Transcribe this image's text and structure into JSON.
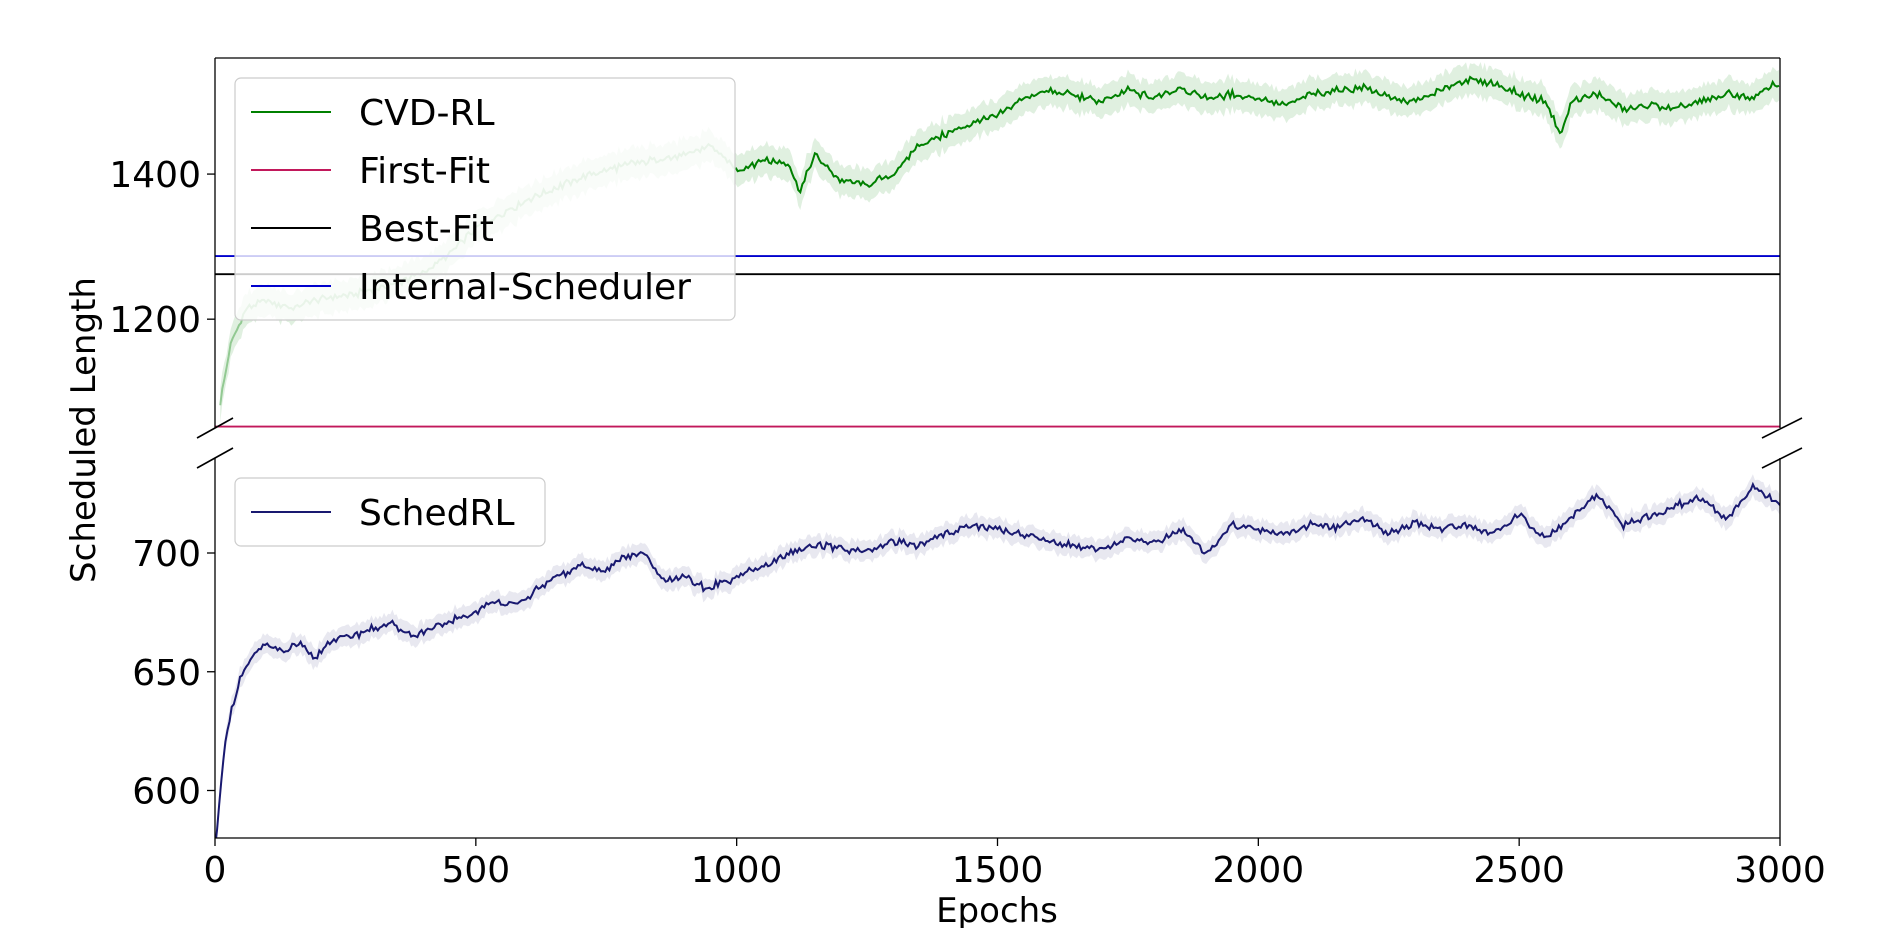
{
  "chart_data": {
    "type": "line",
    "xlabel": "Epochs",
    "ylabel": "Scheduled Length",
    "xlim": [
      0,
      3000
    ],
    "x_ticks": [
      "0",
      "500",
      "1000",
      "1500",
      "2000",
      "2500",
      "3000"
    ],
    "x_tick_values": [
      0,
      500,
      1000,
      1500,
      2000,
      2500,
      3000
    ],
    "broken_y_axis": true,
    "panels": [
      {
        "position": "top",
        "ylim": [
          1050,
          1560
        ],
        "y_ticks": [
          "1200",
          "1400"
        ],
        "y_tick_values": [
          1200,
          1400
        ],
        "legend_placement": "upper-left",
        "series": [
          {
            "name": "CVD-RL",
            "color": "#008000",
            "band_opacity": 0.12,
            "band_half_width": 25,
            "x": [
              10,
              30,
              60,
              100,
              150,
              200,
              250,
              300,
              350,
              400,
              450,
              500,
              550,
              600,
              650,
              700,
              750,
              800,
              850,
              900,
              950,
              1000,
              1050,
              1100,
              1120,
              1150,
              1200,
              1250,
              1300,
              1350,
              1400,
              1450,
              1500,
              1550,
              1600,
              1650,
              1700,
              1750,
              1800,
              1850,
              1900,
              1950,
              2000,
              2050,
              2100,
              2150,
              2200,
              2250,
              2300,
              2350,
              2400,
              2450,
              2500,
              2550,
              2580,
              2600,
              2650,
              2700,
              2750,
              2800,
              2850,
              2900,
              2950,
              2990,
              3000
            ],
            "y": [
              1085,
              1165,
              1215,
              1225,
              1215,
              1228,
              1232,
              1240,
              1250,
              1265,
              1290,
              1325,
              1345,
              1365,
              1380,
              1395,
              1405,
              1415,
              1420,
              1425,
              1440,
              1405,
              1420,
              1415,
              1375,
              1425,
              1390,
              1385,
              1400,
              1440,
              1455,
              1470,
              1480,
              1505,
              1515,
              1508,
              1500,
              1515,
              1505,
              1520,
              1505,
              1510,
              1505,
              1495,
              1510,
              1515,
              1520,
              1505,
              1500,
              1515,
              1530,
              1525,
              1510,
              1500,
              1455,
              1500,
              1510,
              1490,
              1495,
              1490,
              1500,
              1510,
              1505,
              1525,
              1520
            ],
            "faded_until": 1000
          },
          {
            "name": "First-Fit",
            "color": "#c2185b",
            "constant": 1052
          },
          {
            "name": "Best-Fit",
            "color": "#000000",
            "constant": 1262
          },
          {
            "name": "Internal-Scheduler",
            "color": "#0000cd",
            "constant": 1287
          }
        ]
      },
      {
        "position": "bottom",
        "ylim": [
          580,
          740
        ],
        "y_ticks": [
          "600",
          "650",
          "700"
        ],
        "y_tick_values": [
          600,
          650,
          700
        ],
        "legend_placement": "upper-left",
        "series": [
          {
            "name": "SchedRL",
            "color": "#191970",
            "band_opacity": 0.1,
            "band_half_width": 5,
            "x": [
              0,
              10,
              20,
              30,
              40,
              50,
              70,
              90,
              110,
              130,
              160,
              190,
              220,
              260,
              300,
              340,
              380,
              420,
              460,
              500,
              540,
              580,
              620,
              660,
              700,
              740,
              780,
              820,
              860,
              900,
              940,
              980,
              1020,
              1060,
              1100,
              1150,
              1200,
              1250,
              1300,
              1350,
              1400,
              1450,
              1500,
              1550,
              1600,
              1650,
              1700,
              1750,
              1800,
              1850,
              1900,
              1950,
              2000,
              2050,
              2100,
              2150,
              2200,
              2250,
              2300,
              2350,
              2400,
              2450,
              2500,
              2550,
              2600,
              2650,
              2700,
              2750,
              2800,
              2850,
              2900,
              2950,
              3000
            ],
            "y": [
              575,
              600,
              620,
              632,
              640,
              648,
              655,
              662,
              660,
              658,
              662,
              655,
              663,
              665,
              668,
              670,
              665,
              668,
              672,
              675,
              680,
              678,
              685,
              690,
              695,
              692,
              698,
              700,
              688,
              690,
              685,
              688,
              692,
              695,
              700,
              703,
              702,
              700,
              705,
              703,
              708,
              712,
              710,
              708,
              705,
              703,
              702,
              706,
              704,
              710,
              700,
              712,
              710,
              708,
              712,
              710,
              715,
              708,
              713,
              710,
              712,
              708,
              716,
              706,
              715,
              725,
              712,
              715,
              720,
              723,
              714,
              728,
              720
            ]
          }
        ]
      }
    ]
  }
}
